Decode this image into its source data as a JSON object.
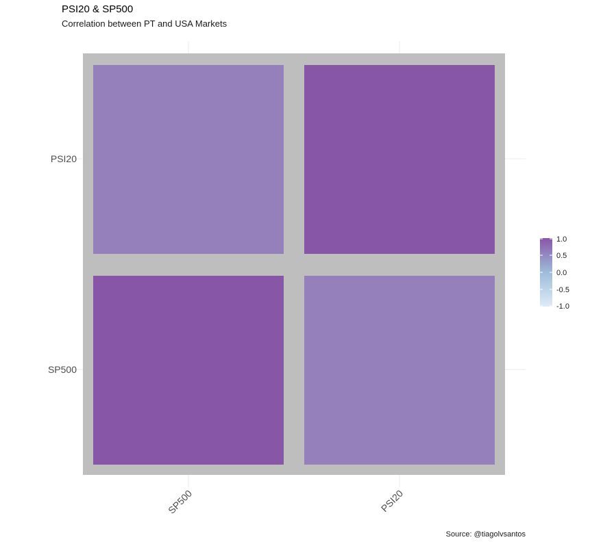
{
  "title": "PSI20 & SP500",
  "subtitle": "Correlation between PT and USA Markets",
  "caption": "Source: @tiagolvsantos",
  "colors": {
    "panel_background": "#bebebe",
    "grid": "#ebebeb",
    "low": "#deebf7",
    "mid": "#9ebcda",
    "high": "#8856a7",
    "tile_mid_value": "#9580bc",
    "tile_high_value": "#8856a7"
  },
  "chart_data": {
    "type": "heatmap",
    "title": "PSI20 & SP500",
    "subtitle": "Correlation between PT and USA Markets",
    "x_categories": [
      "SP500",
      "PSI20"
    ],
    "y_categories": [
      "PSI20",
      "SP500"
    ],
    "cells": [
      {
        "x": "SP500",
        "y": "PSI20",
        "value": 0.66
      },
      {
        "x": "PSI20",
        "y": "PSI20",
        "value": 1.0
      },
      {
        "x": "SP500",
        "y": "SP500",
        "value": 1.0
      },
      {
        "x": "PSI20",
        "y": "SP500",
        "value": 0.66
      }
    ],
    "color_scale": {
      "limits": [
        -1,
        1
      ],
      "breaks": [
        1.0,
        0.5,
        0.0,
        -0.5,
        -1.0
      ],
      "labels": [
        "1.0",
        "0.5",
        "0.0",
        "-0.5",
        "-1.0"
      ]
    },
    "x_tick_rotation": "45 degrees",
    "legend_position": "right",
    "grid": true
  }
}
